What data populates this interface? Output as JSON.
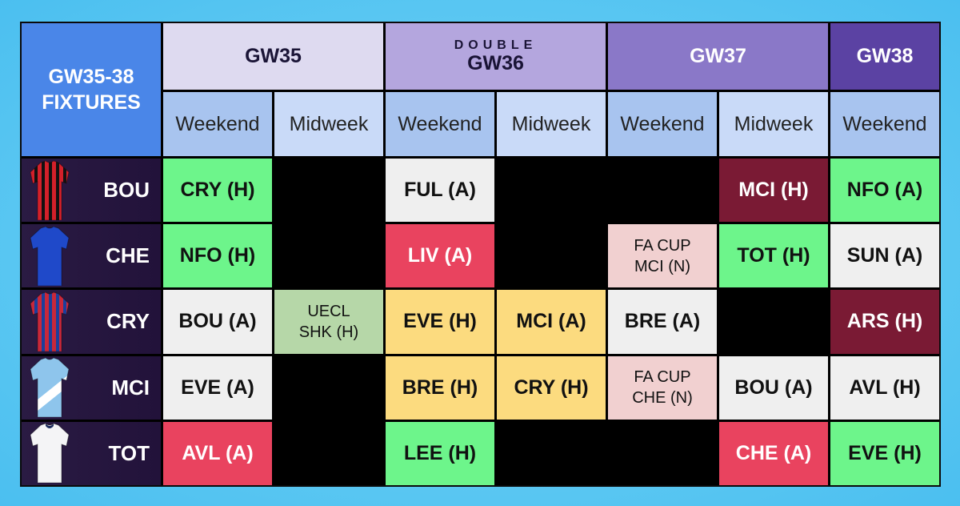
{
  "title": {
    "line1": "GW35-38",
    "line2": "FIXTURES"
  },
  "gameweeks": {
    "gw35": "GW35",
    "gw36_tag": "DOUBLE",
    "gw36": "GW36",
    "gw37": "GW37",
    "gw38": "GW38"
  },
  "subheaders": [
    "Weekend",
    "Midweek",
    "Weekend",
    "Midweek",
    "Weekend",
    "Midweek",
    "Weekend"
  ],
  "colors": {
    "green": "#6df58b",
    "white": "#efefef",
    "red": "#e9435f",
    "maroon": "#7a1a34",
    "yellow": "#fcdb7f",
    "sage": "#b6d7a8",
    "pink": "#f1d0d0",
    "blank": "#000000"
  },
  "teams": [
    {
      "code": "BOU",
      "kit": "bournemouth-shirt-icon",
      "fixtures": [
        {
          "text": "CRY (H)",
          "color": "green"
        },
        {
          "text": "",
          "color": "blank"
        },
        {
          "text": "FUL (A)",
          "color": "white"
        },
        {
          "text": "",
          "color": "blank"
        },
        {
          "text": "",
          "color": "blank"
        },
        {
          "text": "MCI (H)",
          "color": "maroon"
        },
        {
          "text": "NFO (A)",
          "color": "green"
        }
      ]
    },
    {
      "code": "CHE",
      "kit": "chelsea-shirt-icon",
      "fixtures": [
        {
          "text": "NFO (H)",
          "color": "green"
        },
        {
          "text": "",
          "color": "blank"
        },
        {
          "text": "LIV (A)",
          "color": "red"
        },
        {
          "text": "",
          "color": "blank"
        },
        {
          "text": "FA CUP",
          "text2": "MCI (N)",
          "color": "pink"
        },
        {
          "text": "TOT (H)",
          "color": "green"
        },
        {
          "text": "SUN (A)",
          "color": "white"
        }
      ]
    },
    {
      "code": "CRY",
      "kit": "crystal-palace-shirt-icon",
      "fixtures": [
        {
          "text": "BOU (A)",
          "color": "white"
        },
        {
          "text": "UECL",
          "text2": "SHK (H)",
          "color": "sage"
        },
        {
          "text": "EVE (H)",
          "color": "yellow"
        },
        {
          "text": "MCI (A)",
          "color": "yellow"
        },
        {
          "text": "BRE (A)",
          "color": "white"
        },
        {
          "text": "",
          "color": "blank"
        },
        {
          "text": "ARS (H)",
          "color": "maroon"
        }
      ]
    },
    {
      "code": "MCI",
      "kit": "man-city-shirt-icon",
      "fixtures": [
        {
          "text": "EVE (A)",
          "color": "white"
        },
        {
          "text": "",
          "color": "blank"
        },
        {
          "text": "BRE (H)",
          "color": "yellow"
        },
        {
          "text": "CRY (H)",
          "color": "yellow"
        },
        {
          "text": "FA CUP",
          "text2": "CHE (N)",
          "color": "pink"
        },
        {
          "text": "BOU (A)",
          "color": "white"
        },
        {
          "text": "AVL (H)",
          "color": "white"
        }
      ]
    },
    {
      "code": "TOT",
      "kit": "tottenham-shirt-icon",
      "fixtures": [
        {
          "text": "AVL (A)",
          "color": "red"
        },
        {
          "text": "",
          "color": "blank"
        },
        {
          "text": "LEE (H)",
          "color": "green"
        },
        {
          "text": "",
          "color": "blank"
        },
        {
          "text": "",
          "color": "blank"
        },
        {
          "text": "CHE (A)",
          "color": "red"
        },
        {
          "text": "EVE (H)",
          "color": "green"
        }
      ]
    }
  ]
}
